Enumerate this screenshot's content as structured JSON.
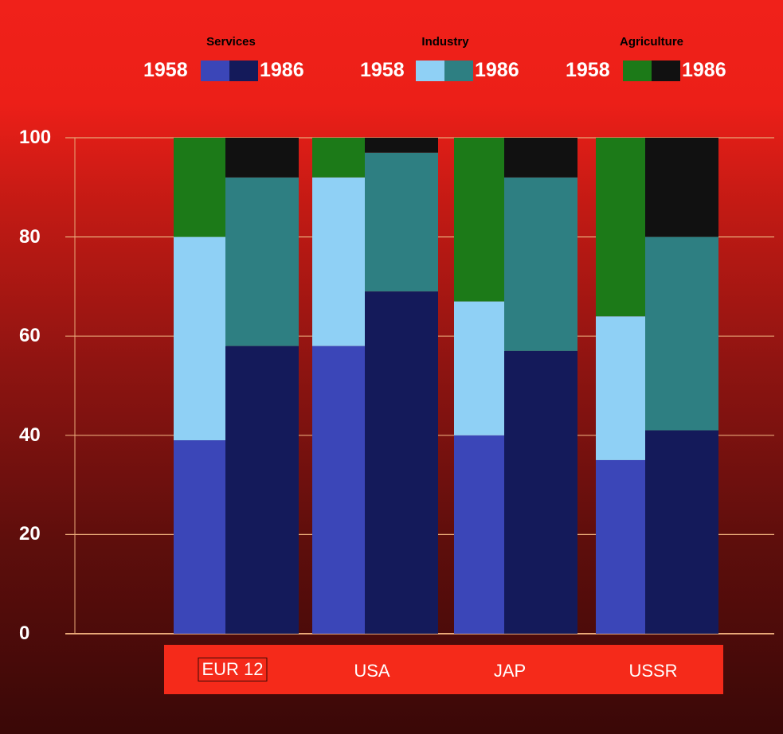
{
  "legend": {
    "groups": [
      {
        "title": "Services",
        "year_old": "1958",
        "year_new": "1986",
        "color_old": "#3b46b8",
        "color_new": "#141a5a"
      },
      {
        "title": "Industry",
        "year_old": "1958",
        "year_new": "1986",
        "color_old": "#8fd0f5",
        "color_new": "#2e7f82"
      },
      {
        "title": "Agriculture",
        "year_old": "1958",
        "year_new": "1986",
        "color_old": "#1c7a18",
        "color_new": "#111111"
      }
    ]
  },
  "chart_data": {
    "type": "bar",
    "stacked": true,
    "categories": [
      "EUR 12",
      "USA",
      "JAP",
      "USSR"
    ],
    "bar_years": [
      "1958",
      "1986"
    ],
    "yticks": [
      "0",
      "20",
      "40",
      "60",
      "80",
      "100"
    ],
    "ylim": [
      0,
      100
    ],
    "grid": true,
    "series": [
      {
        "name": "Services",
        "values_1958": [
          39,
          58,
          40,
          35
        ],
        "values_1986": [
          58,
          69,
          57,
          41
        ]
      },
      {
        "name": "Industry",
        "values_1958": [
          41,
          34,
          27,
          29
        ],
        "values_1986": [
          34,
          28,
          35,
          39
        ]
      },
      {
        "name": "Agriculture",
        "values_1958": [
          20,
          8,
          33,
          36
        ],
        "values_1986": [
          8,
          3,
          8,
          20
        ]
      }
    ],
    "colors": {
      "Services": [
        "#3b46b8",
        "#141a5a"
      ],
      "Industry": [
        "#8fd0f5",
        "#2e7f82"
      ],
      "Agriculture": [
        "#1c7a18",
        "#111111"
      ]
    },
    "grid_color": "#e8a878",
    "boxed_category": "EUR 12"
  }
}
